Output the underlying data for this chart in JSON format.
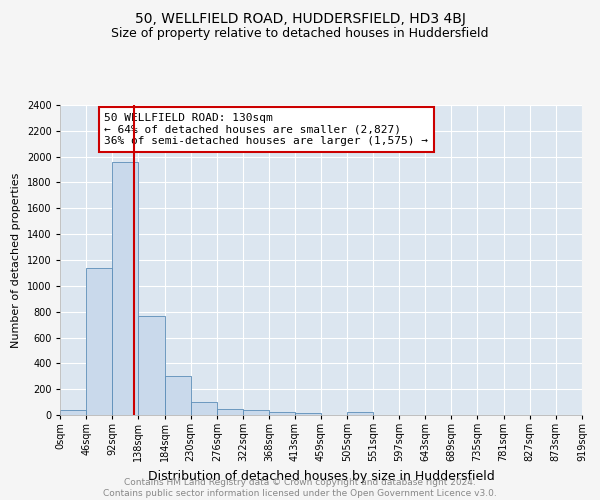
{
  "title": "50, WELLFIELD ROAD, HUDDERSFIELD, HD3 4BJ",
  "subtitle": "Size of property relative to detached houses in Huddersfield",
  "xlabel": "Distribution of detached houses by size in Huddersfield",
  "ylabel": "Number of detached properties",
  "footer_line1": "Contains HM Land Registry data © Crown copyright and database right 2024.",
  "footer_line2": "Contains public sector information licensed under the Open Government Licence v3.0.",
  "annotation_line1": "50 WELLFIELD ROAD: 130sqm",
  "annotation_line2": "← 64% of detached houses are smaller (2,827)",
  "annotation_line3": "36% of semi-detached houses are larger (1,575) →",
  "property_size": 130,
  "bar_edges": [
    0,
    46,
    92,
    138,
    184,
    230,
    276,
    322,
    368,
    413,
    459,
    505,
    551,
    597,
    643,
    689,
    735,
    781,
    827,
    873,
    919
  ],
  "bar_heights": [
    35,
    1140,
    1960,
    770,
    305,
    100,
    47,
    37,
    22,
    13,
    3,
    20,
    0,
    0,
    0,
    0,
    0,
    0,
    0,
    0
  ],
  "bar_color": "#c9d9eb",
  "bar_edge_color": "#5b8db8",
  "vline_color": "#cc0000",
  "vline_x": 130,
  "annotation_box_edge_color": "#cc0000",
  "ylim": [
    0,
    2400
  ],
  "yticks": [
    0,
    200,
    400,
    600,
    800,
    1000,
    1200,
    1400,
    1600,
    1800,
    2000,
    2200,
    2400
  ],
  "bg_color": "#f5f5f5",
  "plot_bg_color": "#dce6f0",
  "grid_color": "#ffffff",
  "title_fontsize": 10,
  "subtitle_fontsize": 9,
  "tick_fontsize": 7,
  "ylabel_fontsize": 8,
  "xlabel_fontsize": 9,
  "annotation_fontsize": 8,
  "footer_fontsize": 6.5,
  "footer_color": "#888888"
}
